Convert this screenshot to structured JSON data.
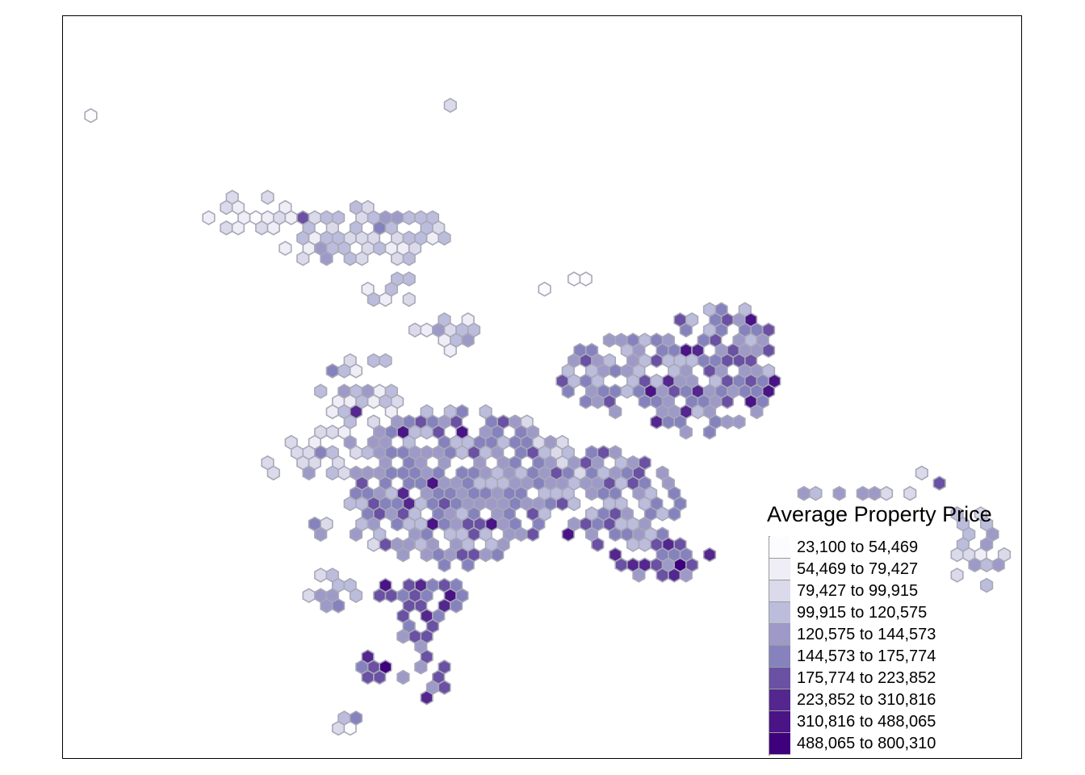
{
  "map": {
    "legend_title": "Average Property Price",
    "hex_border_color": "#a8a8b8",
    "classes": [
      {
        "label": "23,100 to 54,469",
        "color": "#fcfbfd"
      },
      {
        "label": "54,469 to 79,427",
        "color": "#efedf5"
      },
      {
        "label": "79,427 to 99,915",
        "color": "#dadaeb"
      },
      {
        "label": "99,915 to 120,575",
        "color": "#bcbddc"
      },
      {
        "label": "120,575 to 144,573",
        "color": "#9e9ac8"
      },
      {
        "label": "144,573 to 175,774",
        "color": "#8582bd"
      },
      {
        "label": "175,774 to 223,852",
        "color": "#6a51a3"
      },
      {
        "label": "223,852 to 310,816",
        "color": "#54278f"
      },
      {
        "label": "310,816 to 488,065",
        "color": "#4a1486"
      },
      {
        "label": "488,065 to 800,310",
        "color": "#3f007d"
      }
    ]
  }
}
